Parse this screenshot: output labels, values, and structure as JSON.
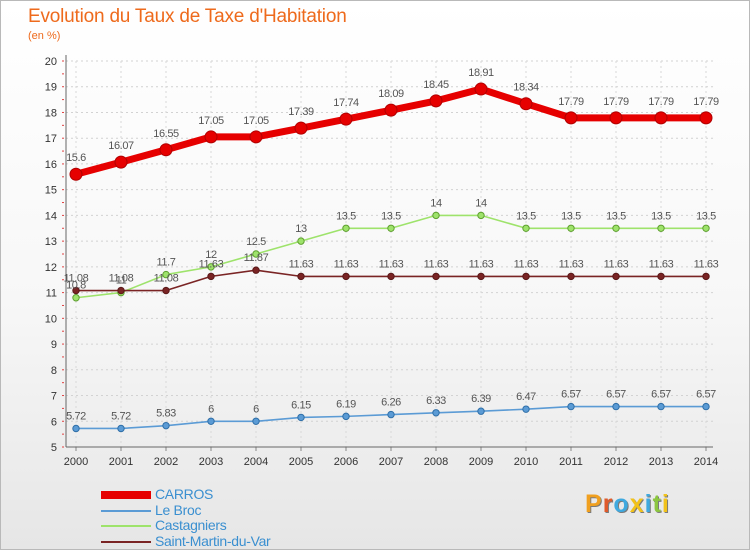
{
  "header": {
    "title": "Evolution du Taux de Taxe d'Habitation",
    "subtitle": "(en %)"
  },
  "chart_data": {
    "type": "line",
    "categories": [
      "2000",
      "2001",
      "2002",
      "2003",
      "2004",
      "2005",
      "2006",
      "2007",
      "2008",
      "2009",
      "2010",
      "2011",
      "2012",
      "2013",
      "2014"
    ],
    "ylim": [
      5,
      20
    ],
    "yticks": [
      "5",
      "6",
      "7",
      "8",
      "9",
      "10",
      "11",
      "12",
      "13",
      "14",
      "15",
      "16",
      "17",
      "18",
      "19",
      "20"
    ],
    "grid": true,
    "legend_placement": "bottom-left",
    "series": [
      {
        "name": "CARROS",
        "color": "#e60000",
        "values": [
          15.6,
          16.07,
          16.55,
          17.05,
          17.05,
          17.39,
          17.74,
          18.09,
          18.45,
          18.91,
          18.34,
          17.79,
          17.79,
          17.79,
          17.79
        ],
        "labels": [
          "15.6",
          "16.07",
          "16.55",
          "17.05",
          "17.05",
          "17.39",
          "17.74",
          "18.09",
          "18.45",
          "18.91",
          "18.34",
          "17.79",
          "17.79",
          "17.79",
          "17.79"
        ]
      },
      {
        "name": "Le Broc",
        "color": "#5b9bd5",
        "values": [
          5.72,
          5.72,
          5.83,
          6,
          6,
          6.15,
          6.19,
          6.26,
          6.33,
          6.39,
          6.47,
          6.57,
          6.57,
          6.57,
          6.57
        ],
        "labels": [
          "5.72",
          "5.72",
          "5.83",
          "6",
          "6",
          "6.15",
          "6.19",
          "6.26",
          "6.33",
          "6.39",
          "6.47",
          "6.57",
          "6.57",
          "6.57",
          "6.57"
        ]
      },
      {
        "name": "Castagniers",
        "color": "#9ee36b",
        "values": [
          10.8,
          11,
          11.7,
          12,
          12.5,
          13,
          13.5,
          13.5,
          14,
          14,
          13.5,
          13.5,
          13.5,
          13.5,
          13.5
        ],
        "labels": [
          "10.8",
          "11",
          "11.7",
          "12",
          "12.5",
          "13",
          "13.5",
          "13.5",
          "14",
          "14",
          "13.5",
          "13.5",
          "13.5",
          "13.5",
          "13.5"
        ]
      },
      {
        "name": "Saint-Martin-du-Var",
        "color": "#7a2424",
        "values": [
          11.08,
          11.08,
          11.08,
          11.63,
          11.87,
          11.63,
          11.63,
          11.63,
          11.63,
          11.63,
          11.63,
          11.63,
          11.63,
          11.63,
          11.63
        ],
        "labels": [
          "11.08",
          "11.08",
          "11.08",
          "11.63",
          "11.87",
          "11.63",
          "11.63",
          "11.63",
          "11.63",
          "11.63",
          "11.63",
          "11.63",
          "11.63",
          "11.63",
          "11.63"
        ]
      }
    ]
  },
  "logo": {
    "letters": [
      "P",
      "r",
      "o",
      "x",
      "i",
      "t",
      "i"
    ],
    "colors": [
      "#f0a020",
      "#e05a2a",
      "#3fa9df",
      "#f2c21a",
      "#3fa9df",
      "#8cc63f",
      "#f2c21a"
    ]
  }
}
